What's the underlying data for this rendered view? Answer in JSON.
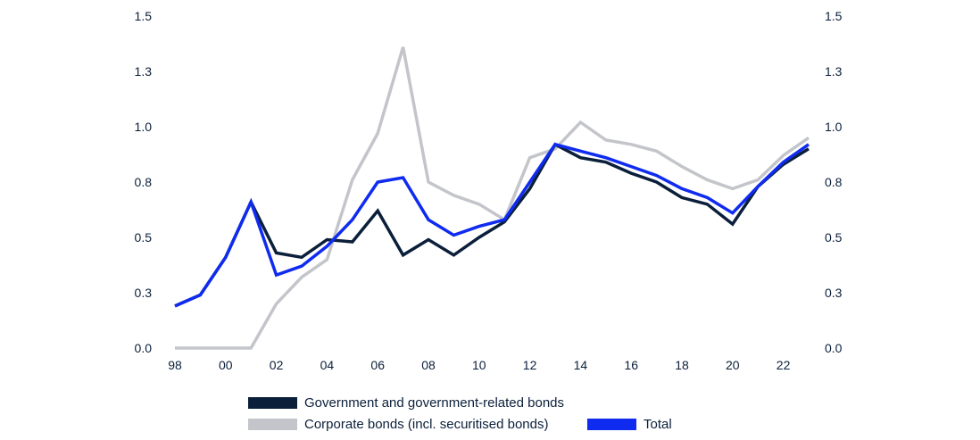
{
  "chart_data": {
    "type": "line",
    "title": "",
    "xlabel": "",
    "ylabel": "",
    "x": [
      1998,
      1999,
      2000,
      2001,
      2002,
      2003,
      2004,
      2005,
      2006,
      2007,
      2008,
      2009,
      2010,
      2011,
      2012,
      2013,
      2014,
      2015,
      2016,
      2017,
      2018,
      2019,
      2020,
      2021,
      2022,
      2023
    ],
    "x_tick_labels": [
      "98",
      "00",
      "02",
      "04",
      "06",
      "08",
      "10",
      "12",
      "14",
      "16",
      "18",
      "20",
      "22"
    ],
    "x_tick_values": [
      1998,
      2000,
      2002,
      2004,
      2006,
      2008,
      2010,
      2012,
      2014,
      2016,
      2018,
      2020,
      2022
    ],
    "y_tick_labels": [
      "0.0",
      "0.3",
      "0.5",
      "0.8",
      "1.0",
      "1.3",
      "1.5"
    ],
    "y_tick_values": [
      0,
      0.25,
      0.5,
      0.75,
      1.0,
      1.25,
      1.5
    ],
    "ylim": [
      0,
      1.5
    ],
    "xlim": [
      1998,
      2023
    ],
    "series": [
      {
        "name": "Corporate bonds (incl. securitised bonds)",
        "color": "#c3c5ca",
        "values": [
          0,
          0,
          0,
          0,
          0.2,
          0.32,
          0.4,
          0.76,
          0.97,
          1.36,
          0.75,
          0.69,
          0.65,
          0.58,
          0.86,
          0.9,
          1.02,
          0.94,
          0.92,
          0.89,
          0.82,
          0.76,
          0.72,
          0.76,
          0.87,
          0.95
        ]
      },
      {
        "name": "Government and government-related bonds",
        "color": "#0b1f3a",
        "values": [
          0.19,
          0.24,
          0.41,
          0.66,
          0.43,
          0.41,
          0.49,
          0.48,
          0.62,
          0.42,
          0.49,
          0.42,
          0.5,
          0.57,
          0.72,
          0.92,
          0.86,
          0.84,
          0.79,
          0.75,
          0.68,
          0.65,
          0.56,
          0.73,
          0.83,
          0.9
        ]
      },
      {
        "name": "Total",
        "color": "#0f2bf0",
        "values": [
          0.19,
          0.24,
          0.41,
          0.66,
          0.33,
          0.37,
          0.46,
          0.58,
          0.75,
          0.77,
          0.58,
          0.51,
          0.55,
          0.58,
          0.75,
          0.92,
          0.89,
          0.86,
          0.82,
          0.78,
          0.72,
          0.68,
          0.61,
          0.73,
          0.84,
          0.92
        ]
      }
    ],
    "legend": {
      "position": "bottom",
      "items": [
        {
          "label": "Government and government-related bonds",
          "color": "#0b1f3a"
        },
        {
          "label": "Corporate bonds (incl. securitised bonds)",
          "color": "#c3c5ca"
        },
        {
          "label": "Total",
          "color": "#0f2bf0"
        }
      ]
    }
  }
}
